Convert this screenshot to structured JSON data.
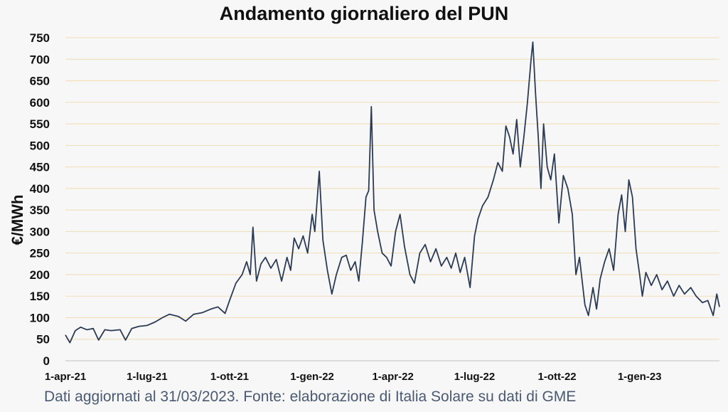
{
  "chart_data": {
    "type": "line",
    "title": "Andamento giornaliero del PUN",
    "ylabel": "€/MWh",
    "xlabel": "",
    "caption": "Dati aggiornati al 31/03/2023. Fonte: elaborazione di Italia Solare su dati di GME",
    "ylim": [
      0,
      750
    ],
    "yticks": [
      0,
      50,
      100,
      150,
      200,
      250,
      300,
      350,
      400,
      450,
      500,
      550,
      600,
      650,
      700,
      750
    ],
    "grid": true,
    "legend": "none",
    "line_color": "#2b3a55",
    "grid_color": "#f0ddb5",
    "xtick_labels": [
      "1-apr-21",
      "1-lug-21",
      "1-ott-21",
      "1-gen-22",
      "1-apr-22",
      "1-lug-22",
      "1-ott-22",
      "1-gen-23"
    ],
    "xtick_dates": [
      "2021-04-01",
      "2021-07-01",
      "2021-10-01",
      "2022-01-01",
      "2022-04-01",
      "2022-07-01",
      "2022-10-01",
      "2023-01-01"
    ],
    "x_range": [
      "2021-04-01",
      "2023-03-31"
    ],
    "series": [
      {
        "points": [
          [
            "2021-04-01",
            60
          ],
          [
            "2021-04-06",
            42
          ],
          [
            "2021-04-12",
            70
          ],
          [
            "2021-04-18",
            78
          ],
          [
            "2021-04-25",
            72
          ],
          [
            "2021-05-02",
            75
          ],
          [
            "2021-05-08",
            48
          ],
          [
            "2021-05-15",
            72
          ],
          [
            "2021-05-22",
            70
          ],
          [
            "2021-06-01",
            72
          ],
          [
            "2021-06-07",
            48
          ],
          [
            "2021-06-14",
            75
          ],
          [
            "2021-06-22",
            80
          ],
          [
            "2021-07-01",
            82
          ],
          [
            "2021-07-10",
            90
          ],
          [
            "2021-07-18",
            100
          ],
          [
            "2021-07-26",
            108
          ],
          [
            "2021-08-05",
            103
          ],
          [
            "2021-08-13",
            92
          ],
          [
            "2021-08-22",
            108
          ],
          [
            "2021-09-01",
            112
          ],
          [
            "2021-09-10",
            120
          ],
          [
            "2021-09-18",
            125
          ],
          [
            "2021-09-26",
            110
          ],
          [
            "2021-10-01",
            140
          ],
          [
            "2021-10-08",
            180
          ],
          [
            "2021-10-15",
            200
          ],
          [
            "2021-10-20",
            230
          ],
          [
            "2021-10-24",
            200
          ],
          [
            "2021-10-27",
            310
          ],
          [
            "2021-10-31",
            185
          ],
          [
            "2021-11-05",
            225
          ],
          [
            "2021-11-10",
            240
          ],
          [
            "2021-11-16",
            215
          ],
          [
            "2021-11-22",
            235
          ],
          [
            "2021-11-28",
            185
          ],
          [
            "2021-12-04",
            240
          ],
          [
            "2021-12-08",
            210
          ],
          [
            "2021-12-12",
            285
          ],
          [
            "2021-12-17",
            260
          ],
          [
            "2021-12-22",
            290
          ],
          [
            "2021-12-27",
            250
          ],
          [
            "2022-01-01",
            340
          ],
          [
            "2022-01-04",
            300
          ],
          [
            "2022-01-09",
            440
          ],
          [
            "2022-01-13",
            280
          ],
          [
            "2022-01-18",
            210
          ],
          [
            "2022-01-23",
            155
          ],
          [
            "2022-01-28",
            200
          ],
          [
            "2022-02-03",
            240
          ],
          [
            "2022-02-08",
            245
          ],
          [
            "2022-02-13",
            210
          ],
          [
            "2022-02-18",
            230
          ],
          [
            "2022-02-22",
            185
          ],
          [
            "2022-02-26",
            275
          ],
          [
            "2022-03-02",
            380
          ],
          [
            "2022-03-05",
            395
          ],
          [
            "2022-03-08",
            590
          ],
          [
            "2022-03-11",
            350
          ],
          [
            "2022-03-15",
            300
          ],
          [
            "2022-03-20",
            250
          ],
          [
            "2022-03-25",
            240
          ],
          [
            "2022-03-30",
            220
          ],
          [
            "2022-04-04",
            300
          ],
          [
            "2022-04-09",
            340
          ],
          [
            "2022-04-14",
            265
          ],
          [
            "2022-04-20",
            200
          ],
          [
            "2022-04-25",
            180
          ],
          [
            "2022-05-01",
            250
          ],
          [
            "2022-05-07",
            270
          ],
          [
            "2022-05-13",
            230
          ],
          [
            "2022-05-19",
            260
          ],
          [
            "2022-05-25",
            220
          ],
          [
            "2022-05-31",
            240
          ],
          [
            "2022-06-05",
            215
          ],
          [
            "2022-06-10",
            250
          ],
          [
            "2022-06-15",
            205
          ],
          [
            "2022-06-20",
            240
          ],
          [
            "2022-06-26",
            170
          ],
          [
            "2022-07-01",
            290
          ],
          [
            "2022-07-05",
            330
          ],
          [
            "2022-07-10",
            360
          ],
          [
            "2022-07-16",
            380
          ],
          [
            "2022-07-22",
            420
          ],
          [
            "2022-07-27",
            460
          ],
          [
            "2022-08-01",
            440
          ],
          [
            "2022-08-05",
            545
          ],
          [
            "2022-08-09",
            520
          ],
          [
            "2022-08-13",
            480
          ],
          [
            "2022-08-17",
            560
          ],
          [
            "2022-08-21",
            450
          ],
          [
            "2022-08-25",
            520
          ],
          [
            "2022-08-29",
            600
          ],
          [
            "2022-09-02",
            700
          ],
          [
            "2022-09-04",
            740
          ],
          [
            "2022-09-07",
            620
          ],
          [
            "2022-09-10",
            520
          ],
          [
            "2022-09-13",
            400
          ],
          [
            "2022-09-16",
            550
          ],
          [
            "2022-09-20",
            450
          ],
          [
            "2022-09-24",
            420
          ],
          [
            "2022-09-28",
            480
          ],
          [
            "2022-10-03",
            320
          ],
          [
            "2022-10-08",
            430
          ],
          [
            "2022-10-13",
            400
          ],
          [
            "2022-10-18",
            340
          ],
          [
            "2022-10-22",
            200
          ],
          [
            "2022-10-26",
            240
          ],
          [
            "2022-11-01",
            130
          ],
          [
            "2022-11-05",
            105
          ],
          [
            "2022-11-10",
            170
          ],
          [
            "2022-11-14",
            120
          ],
          [
            "2022-11-18",
            190
          ],
          [
            "2022-11-23",
            230
          ],
          [
            "2022-11-28",
            260
          ],
          [
            "2022-12-03",
            210
          ],
          [
            "2022-12-08",
            340
          ],
          [
            "2022-12-12",
            385
          ],
          [
            "2022-12-16",
            300
          ],
          [
            "2022-12-20",
            420
          ],
          [
            "2022-12-24",
            380
          ],
          [
            "2022-12-28",
            260
          ],
          [
            "2023-01-01",
            200
          ],
          [
            "2023-01-04",
            150
          ],
          [
            "2023-01-08",
            205
          ],
          [
            "2023-01-14",
            175
          ],
          [
            "2023-01-20",
            200
          ],
          [
            "2023-01-26",
            165
          ],
          [
            "2023-02-01",
            185
          ],
          [
            "2023-02-08",
            150
          ],
          [
            "2023-02-14",
            175
          ],
          [
            "2023-02-20",
            155
          ],
          [
            "2023-02-27",
            170
          ],
          [
            "2023-03-05",
            150
          ],
          [
            "2023-03-12",
            135
          ],
          [
            "2023-03-18",
            140
          ],
          [
            "2023-03-24",
            105
          ],
          [
            "2023-03-28",
            155
          ],
          [
            "2023-03-31",
            125
          ]
        ]
      }
    ]
  }
}
